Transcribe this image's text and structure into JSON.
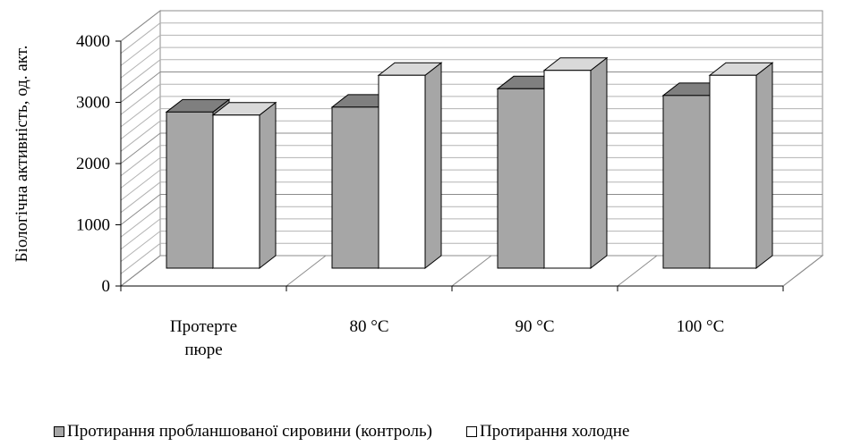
{
  "chart_data": {
    "type": "bar",
    "categories": [
      [
        "Протерте",
        "пюре"
      ],
      [
        "80 °C"
      ],
      [
        "90 °C"
      ],
      [
        "100 °C"
      ]
    ],
    "series": [
      {
        "name": "Протирання пробланшованої сировини (контроль)",
        "values": [
          2550,
          2630,
          2930,
          2820
        ],
        "color": "#a6a6a6"
      },
      {
        "name": "Протирання холодне",
        "values": [
          2500,
          3150,
          3230,
          3150
        ],
        "color": "#ffffff"
      }
    ],
    "ylabel": "Біологічна активність, од. акт.",
    "ylim": [
      0,
      4000
    ],
    "yticks": [
      "0",
      "1000",
      "2000",
      "3000",
      "4000"
    ],
    "grid": true,
    "legend_position": "bottom",
    "style": "3d"
  }
}
